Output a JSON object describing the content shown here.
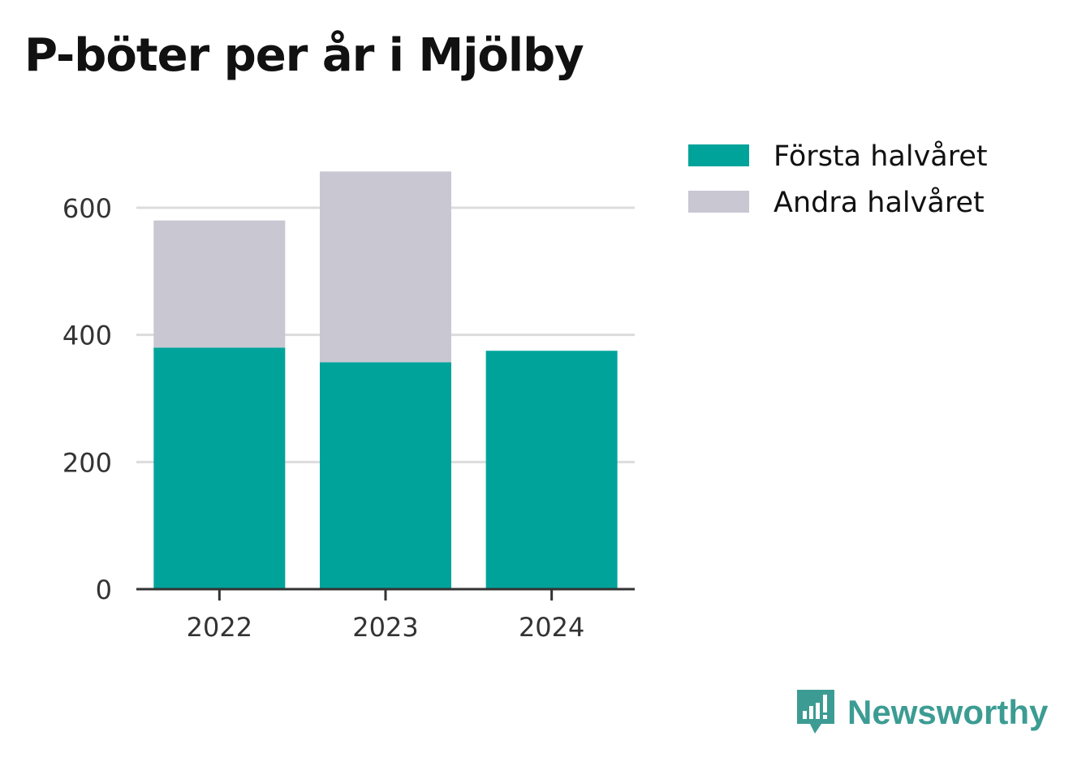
{
  "chart_data": {
    "type": "bar",
    "stacked": true,
    "title": "P-böter per år i Mjölby",
    "categories": [
      "2022",
      "2023",
      "2024"
    ],
    "series": [
      {
        "name": "Första halvåret",
        "color": "#00a39a",
        "values": [
          380,
          357,
          375
        ]
      },
      {
        "name": "Andra halvåret",
        "color": "#c8c7d2",
        "values": [
          200,
          300,
          0
        ]
      }
    ],
    "ylim": [
      0,
      700
    ],
    "yticks": [
      0,
      200,
      400,
      600
    ],
    "grid": true,
    "legend_position": "top-right"
  },
  "brand": {
    "name": "Newsworthy",
    "icon": "newsworthy-logo-icon",
    "color": "#3c9c93"
  }
}
